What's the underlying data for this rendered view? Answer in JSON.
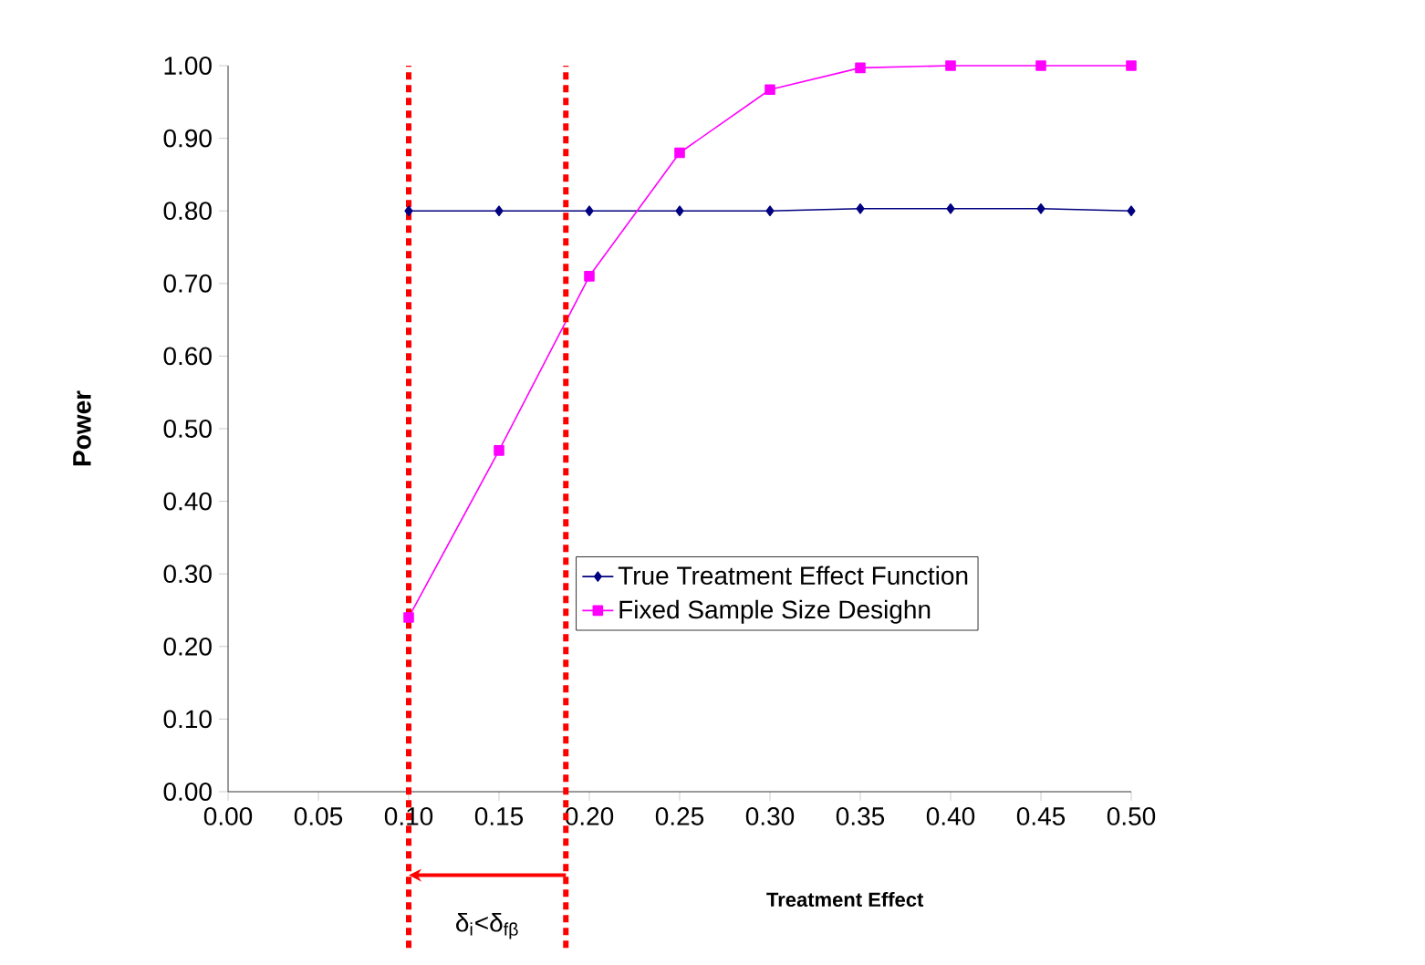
{
  "chart_data": {
    "type": "line",
    "xlabel": "Treatment Effect",
    "ylabel": "Power",
    "x": [
      0.1,
      0.15,
      0.2,
      0.25,
      0.3,
      0.35,
      0.4,
      0.45,
      0.5
    ],
    "series": [
      {
        "name": "True Treatment Effect Function",
        "color": "#000080",
        "marker": "diamond",
        "values": [
          0.8,
          0.8,
          0.8,
          0.8,
          0.8,
          0.803,
          0.803,
          0.803,
          0.8
        ]
      },
      {
        "name": "Fixed Sample Size Desighn",
        "color": "#ff00ff",
        "marker": "square",
        "values": [
          0.24,
          0.47,
          0.71,
          0.88,
          0.967,
          0.997,
          1.0,
          1.0,
          1.0
        ]
      }
    ],
    "xlim": [
      0,
      0.5
    ],
    "ylim": [
      0,
      1
    ],
    "xticks": [
      {
        "value": 0,
        "label": "0.00"
      },
      {
        "value": 0.05,
        "label": "0.05"
      },
      {
        "value": 0.1,
        "label": "0.10"
      },
      {
        "value": 0.15,
        "label": "0.15"
      },
      {
        "value": 0.2,
        "label": "0.20"
      },
      {
        "value": 0.25,
        "label": "0.25"
      },
      {
        "value": 0.3,
        "label": "0.30"
      },
      {
        "value": 0.35,
        "label": "0.35"
      },
      {
        "value": 0.4,
        "label": "0.40"
      },
      {
        "value": 0.45,
        "label": "0.45"
      },
      {
        "value": 0.5,
        "label": "0.50"
      }
    ],
    "yticks": [
      {
        "value": 0,
        "label": "0.00"
      },
      {
        "value": 0.1,
        "label": "0.10"
      },
      {
        "value": 0.2,
        "label": "0.20"
      },
      {
        "value": 0.3,
        "label": "0.30"
      },
      {
        "value": 0.4,
        "label": "0.40"
      },
      {
        "value": 0.5,
        "label": "0.50"
      },
      {
        "value": 0.6,
        "label": "0.60"
      },
      {
        "value": 0.7,
        "label": "0.70"
      },
      {
        "value": 0.8,
        "label": "0.80"
      },
      {
        "value": 0.9,
        "label": "0.90"
      },
      {
        "value": 1.0,
        "label": "1.00"
      }
    ],
    "ref_lines": [
      {
        "axis": "x",
        "value": 0.1,
        "color": "#ff0000",
        "line_style": "dotted"
      },
      {
        "axis": "x",
        "value": 0.187,
        "color": "#ff0000",
        "line_style": "dotted"
      }
    ],
    "annotations": [
      "δ$_{i}$<δ$_{fβ}$"
    ],
    "legend": "right",
    "grid": false
  }
}
